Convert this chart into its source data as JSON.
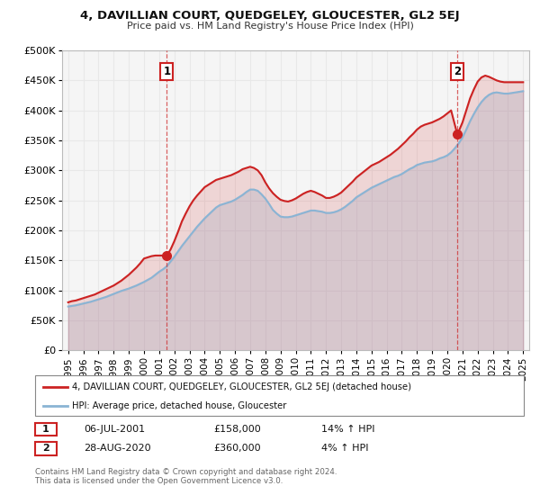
{
  "title": "4, DAVILLIAN COURT, QUEDGELEY, GLOUCESTER, GL2 5EJ",
  "subtitle": "Price paid vs. HM Land Registry's House Price Index (HPI)",
  "ylim": [
    0,
    500000
  ],
  "yticks": [
    0,
    50000,
    100000,
    150000,
    200000,
    250000,
    300000,
    350000,
    400000,
    450000,
    500000
  ],
  "ytick_labels": [
    "£0",
    "£50K",
    "£100K",
    "£150K",
    "£200K",
    "£250K",
    "£300K",
    "£350K",
    "£400K",
    "£450K",
    "£500K"
  ],
  "xlim_start": 1994.6,
  "xlim_end": 2025.4,
  "xticks": [
    1995,
    1996,
    1997,
    1998,
    1999,
    2000,
    2001,
    2002,
    2003,
    2004,
    2005,
    2006,
    2007,
    2008,
    2009,
    2010,
    2011,
    2012,
    2013,
    2014,
    2015,
    2016,
    2017,
    2018,
    2019,
    2020,
    2021,
    2022,
    2023,
    2024,
    2025
  ],
  "hpi_color": "#8ab4d4",
  "price_color": "#cc2222",
  "marker_color": "#cc2222",
  "vline_color": "#cc2222",
  "background_color": "#ffffff",
  "plot_bg_color": "#f5f5f5",
  "grid_color": "#e8e8e8",
  "legend_label_price": "4, DAVILLIAN COURT, QUEDGELEY, GLOUCESTER, GL2 5EJ (detached house)",
  "legend_label_hpi": "HPI: Average price, detached house, Gloucester",
  "annotation1_date": "06-JUL-2001",
  "annotation1_price": "£158,000",
  "annotation1_hpi": "14% ↑ HPI",
  "annotation2_date": "28-AUG-2020",
  "annotation2_price": "£360,000",
  "annotation2_hpi": "4% ↑ HPI",
  "sale1_year": 2001.51,
  "sale1_value": 158000,
  "sale2_year": 2020.66,
  "sale2_value": 360000,
  "footnote": "Contains HM Land Registry data © Crown copyright and database right 2024.\nThis data is licensed under the Open Government Licence v3.0.",
  "hpi_x": [
    1995.0,
    1995.25,
    1995.5,
    1995.75,
    1996.0,
    1996.25,
    1996.5,
    1996.75,
    1997.0,
    1997.25,
    1997.5,
    1997.75,
    1998.0,
    1998.25,
    1998.5,
    1998.75,
    1999.0,
    1999.25,
    1999.5,
    1999.75,
    2000.0,
    2000.25,
    2000.5,
    2000.75,
    2001.0,
    2001.25,
    2001.5,
    2001.75,
    2002.0,
    2002.25,
    2002.5,
    2002.75,
    2003.0,
    2003.25,
    2003.5,
    2003.75,
    2004.0,
    2004.25,
    2004.5,
    2004.75,
    2005.0,
    2005.25,
    2005.5,
    2005.75,
    2006.0,
    2006.25,
    2006.5,
    2006.75,
    2007.0,
    2007.25,
    2007.5,
    2007.75,
    2008.0,
    2008.25,
    2008.5,
    2008.75,
    2009.0,
    2009.25,
    2009.5,
    2009.75,
    2010.0,
    2010.25,
    2010.5,
    2010.75,
    2011.0,
    2011.25,
    2011.5,
    2011.75,
    2012.0,
    2012.25,
    2012.5,
    2012.75,
    2013.0,
    2013.25,
    2013.5,
    2013.75,
    2014.0,
    2014.25,
    2014.5,
    2014.75,
    2015.0,
    2015.25,
    2015.5,
    2015.75,
    2016.0,
    2016.25,
    2016.5,
    2016.75,
    2017.0,
    2017.25,
    2017.5,
    2017.75,
    2018.0,
    2018.25,
    2018.5,
    2018.75,
    2019.0,
    2019.25,
    2019.5,
    2019.75,
    2020.0,
    2020.25,
    2020.5,
    2020.75,
    2021.0,
    2021.25,
    2021.5,
    2021.75,
    2022.0,
    2022.25,
    2022.5,
    2022.75,
    2023.0,
    2023.25,
    2023.5,
    2023.75,
    2024.0,
    2024.25,
    2024.5,
    2024.75,
    2025.0
  ],
  "hpi_y": [
    73000,
    74000,
    75000,
    76500,
    78000,
    79500,
    81000,
    83000,
    85000,
    87000,
    89000,
    91500,
    94000,
    96500,
    99000,
    101000,
    103000,
    105500,
    108000,
    111000,
    114000,
    117500,
    121000,
    126000,
    131000,
    135000,
    140000,
    148000,
    156000,
    165000,
    174000,
    182000,
    190000,
    198000,
    206000,
    213000,
    220000,
    226000,
    232000,
    238000,
    242000,
    244000,
    246000,
    248000,
    251000,
    255000,
    259000,
    264000,
    268000,
    268000,
    266000,
    260000,
    253000,
    244000,
    234000,
    228000,
    223000,
    222000,
    222000,
    223000,
    225000,
    227000,
    229000,
    231000,
    233000,
    233000,
    232000,
    231000,
    229000,
    229000,
    230000,
    232000,
    235000,
    239000,
    244000,
    249000,
    255000,
    259000,
    263000,
    267000,
    271000,
    274000,
    277000,
    280000,
    283000,
    286000,
    289000,
    291000,
    294000,
    298000,
    302000,
    305000,
    309000,
    311000,
    313000,
    314000,
    315000,
    317000,
    320000,
    322000,
    325000,
    330000,
    337000,
    345000,
    355000,
    368000,
    382000,
    394000,
    405000,
    414000,
    421000,
    426000,
    429000,
    430000,
    429000,
    428000,
    428000,
    429000,
    430000,
    431000,
    432000
  ],
  "price_x": [
    1995.0,
    1995.25,
    1995.5,
    1995.75,
    1996.0,
    1996.25,
    1996.5,
    1996.75,
    1997.0,
    1997.25,
    1997.5,
    1997.75,
    1998.0,
    1998.25,
    1998.5,
    1998.75,
    1999.0,
    1999.25,
    1999.5,
    1999.75,
    2000.0,
    2000.25,
    2000.5,
    2000.75,
    2001.0,
    2001.25,
    2001.51,
    2001.75,
    2002.0,
    2002.25,
    2002.5,
    2002.75,
    2003.0,
    2003.25,
    2003.5,
    2003.75,
    2004.0,
    2004.25,
    2004.5,
    2004.75,
    2005.0,
    2005.25,
    2005.5,
    2005.75,
    2006.0,
    2006.25,
    2006.5,
    2006.75,
    2007.0,
    2007.25,
    2007.5,
    2007.75,
    2008.0,
    2008.25,
    2008.5,
    2008.75,
    2009.0,
    2009.25,
    2009.5,
    2009.75,
    2010.0,
    2010.25,
    2010.5,
    2010.75,
    2011.0,
    2011.25,
    2011.5,
    2011.75,
    2012.0,
    2012.25,
    2012.5,
    2012.75,
    2013.0,
    2013.25,
    2013.5,
    2013.75,
    2014.0,
    2014.25,
    2014.5,
    2014.75,
    2015.0,
    2015.25,
    2015.5,
    2015.75,
    2016.0,
    2016.25,
    2016.5,
    2016.75,
    2017.0,
    2017.25,
    2017.5,
    2017.75,
    2018.0,
    2018.25,
    2018.5,
    2018.75,
    2019.0,
    2019.25,
    2019.5,
    2019.75,
    2020.0,
    2020.25,
    2020.66,
    2020.75,
    2021.0,
    2021.25,
    2021.5,
    2021.75,
    2022.0,
    2022.25,
    2022.5,
    2022.75,
    2023.0,
    2023.25,
    2023.5,
    2023.75,
    2024.0,
    2024.25,
    2024.5,
    2024.75,
    2025.0
  ],
  "price_y": [
    80000,
    82000,
    83000,
    85000,
    87000,
    89000,
    91000,
    93000,
    96000,
    99000,
    102000,
    105000,
    108000,
    112000,
    116000,
    121000,
    126000,
    132000,
    138000,
    145000,
    153000,
    155000,
    157000,
    158000,
    158000,
    158000,
    158000,
    168000,
    182000,
    198000,
    215000,
    228000,
    240000,
    250000,
    258000,
    265000,
    272000,
    276000,
    280000,
    284000,
    286000,
    288000,
    290000,
    292000,
    295000,
    298000,
    302000,
    304000,
    306000,
    304000,
    300000,
    292000,
    280000,
    270000,
    262000,
    256000,
    251000,
    249000,
    248000,
    250000,
    253000,
    257000,
    261000,
    264000,
    266000,
    264000,
    261000,
    258000,
    254000,
    254000,
    256000,
    259000,
    263000,
    269000,
    275000,
    281000,
    288000,
    293000,
    298000,
    303000,
    308000,
    311000,
    314000,
    318000,
    322000,
    326000,
    331000,
    336000,
    342000,
    348000,
    355000,
    361000,
    368000,
    373000,
    376000,
    378000,
    380000,
    383000,
    386000,
    390000,
    395000,
    400000,
    360000,
    365000,
    380000,
    400000,
    420000,
    435000,
    448000,
    455000,
    458000,
    456000,
    453000,
    450000,
    448000,
    447000,
    447000,
    447000,
    447000,
    447000,
    447000
  ]
}
